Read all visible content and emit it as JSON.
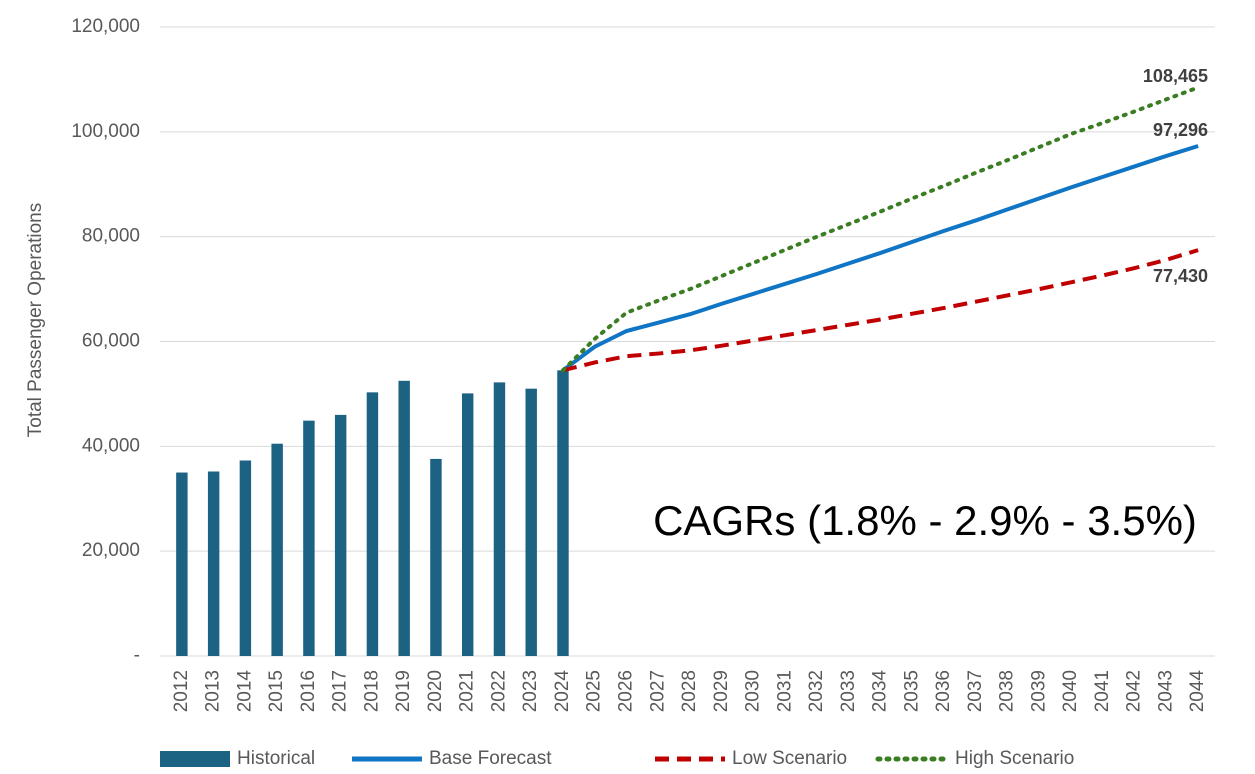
{
  "chart_data": {
    "type": "bar",
    "y_label": "Total Passenger Operations",
    "annotation": "CAGRs (1.8% - 2.9% - 3.5%)",
    "categories": [
      "2012",
      "2013",
      "2014",
      "2015",
      "2016",
      "2017",
      "2018",
      "2019",
      "2020",
      "2021",
      "2022",
      "2023",
      "2024",
      "2025",
      "2026",
      "2027",
      "2028",
      "2029",
      "2030",
      "2031",
      "2032",
      "2033",
      "2034",
      "2035",
      "2036",
      "2037",
      "2038",
      "2039",
      "2040",
      "2041",
      "2042",
      "2043",
      "2044"
    ],
    "series": [
      {
        "name": "Historical",
        "type": "bar",
        "color": "#1b6283",
        "values": [
          35000,
          35200,
          37300,
          40500,
          44900,
          46000,
          50300,
          52500,
          37600,
          50100,
          52200,
          51000,
          54500,
          null,
          null,
          null,
          null,
          null,
          null,
          null,
          null,
          null,
          null,
          null,
          null,
          null,
          null,
          null,
          null,
          null,
          null,
          null,
          null
        ]
      },
      {
        "name": "Base Forecast",
        "type": "line",
        "dash": "solid",
        "color": "#0f75c4",
        "values": [
          null,
          null,
          null,
          null,
          null,
          null,
          null,
          null,
          null,
          null,
          null,
          null,
          54500,
          59000,
          62000,
          63600,
          65200,
          67200,
          69100,
          71000,
          72900,
          74900,
          76900,
          79000,
          81100,
          83100,
          85200,
          87300,
          89400,
          91400,
          93400,
          95400,
          97296
        ],
        "value_labels": [
          null,
          null,
          null,
          null,
          null,
          null,
          null,
          null,
          null,
          null,
          null,
          null,
          null,
          null,
          null,
          null,
          null,
          null,
          null,
          null,
          null,
          null,
          null,
          null,
          null,
          null,
          null,
          null,
          null,
          null,
          null,
          null,
          "97,296"
        ]
      },
      {
        "name": "Low Scenario",
        "type": "line",
        "dash": "dashed",
        "color": "#c00000",
        "values": [
          null,
          null,
          null,
          null,
          null,
          null,
          null,
          null,
          null,
          null,
          null,
          null,
          54500,
          56000,
          57200,
          57700,
          58300,
          59200,
          60200,
          61200,
          62200,
          63200,
          64200,
          65300,
          66400,
          67600,
          68800,
          70000,
          71300,
          72600,
          74000,
          75600,
          77430
        ],
        "value_labels": [
          null,
          null,
          null,
          null,
          null,
          null,
          null,
          null,
          null,
          null,
          null,
          null,
          null,
          null,
          null,
          null,
          null,
          null,
          null,
          null,
          null,
          null,
          null,
          null,
          null,
          null,
          null,
          null,
          null,
          null,
          null,
          null,
          "77,430"
        ]
      },
      {
        "name": "High Scenario",
        "type": "line",
        "dash": "dotted",
        "color": "#3a7d22",
        "values": [
          null,
          null,
          null,
          null,
          null,
          null,
          null,
          null,
          null,
          null,
          null,
          null,
          54500,
          60500,
          65500,
          67800,
          70000,
          72500,
          75000,
          77500,
          80000,
          82400,
          84800,
          87300,
          89700,
          92200,
          94600,
          97100,
          99600,
          101700,
          103900,
          106200,
          108465
        ],
        "value_labels": [
          null,
          null,
          null,
          null,
          null,
          null,
          null,
          null,
          null,
          null,
          null,
          null,
          null,
          null,
          null,
          null,
          null,
          null,
          null,
          null,
          null,
          null,
          null,
          null,
          null,
          null,
          null,
          null,
          null,
          null,
          null,
          null,
          "108,465"
        ]
      }
    ],
    "ylim": [
      0,
      120000
    ],
    "yticks": [
      {
        "value": 0,
        "label": "-"
      },
      {
        "value": 20000,
        "label": "20,000"
      },
      {
        "value": 40000,
        "label": "40,000"
      },
      {
        "value": 60000,
        "label": "60,000"
      },
      {
        "value": 80000,
        "label": "80,000"
      },
      {
        "value": 100000,
        "label": "100,000"
      },
      {
        "value": 120000,
        "label": "120,000"
      }
    ],
    "grid": true,
    "legend": "bottom"
  }
}
